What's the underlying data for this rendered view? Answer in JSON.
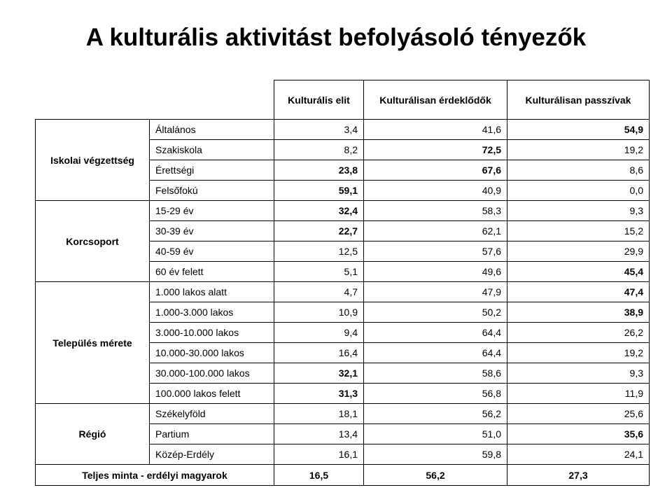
{
  "title": "A kulturális aktivitást befolyásoló tényezők",
  "columns": [
    "Kulturális elit",
    "Kulturálisan érdeklődők",
    "Kulturálisan passzívak"
  ],
  "groups": [
    {
      "name": "Iskolai végzettség",
      "rows": [
        {
          "label": "Általános",
          "values": [
            "3,4",
            "41,6",
            "54,9"
          ],
          "bold": [
            false,
            false,
            true
          ]
        },
        {
          "label": "Szakiskola",
          "values": [
            "8,2",
            "72,5",
            "19,2"
          ],
          "bold": [
            false,
            true,
            false
          ]
        },
        {
          "label": "Érettségi",
          "values": [
            "23,8",
            "67,6",
            "8,6"
          ],
          "bold": [
            true,
            true,
            false
          ]
        },
        {
          "label": "Felsőfokú",
          "values": [
            "59,1",
            "40,9",
            "0,0"
          ],
          "bold": [
            true,
            false,
            false
          ]
        }
      ]
    },
    {
      "name": "Korcsoport",
      "rows": [
        {
          "label": "15-29 év",
          "values": [
            "32,4",
            "58,3",
            "9,3"
          ],
          "bold": [
            true,
            false,
            false
          ]
        },
        {
          "label": "30-39 év",
          "values": [
            "22,7",
            "62,1",
            "15,2"
          ],
          "bold": [
            true,
            false,
            false
          ]
        },
        {
          "label": "40-59 év",
          "values": [
            "12,5",
            "57,6",
            "29,9"
          ],
          "bold": [
            false,
            false,
            false
          ]
        },
        {
          "label": "60 év felett",
          "values": [
            "5,1",
            "49,6",
            "45,4"
          ],
          "bold": [
            false,
            false,
            true
          ]
        }
      ]
    },
    {
      "name": "Település mérete",
      "rows": [
        {
          "label": "1.000 lakos alatt",
          "values": [
            "4,7",
            "47,9",
            "47,4"
          ],
          "bold": [
            false,
            false,
            true
          ]
        },
        {
          "label": "1.000-3.000 lakos",
          "values": [
            "10,9",
            "50,2",
            "38,9"
          ],
          "bold": [
            false,
            false,
            true
          ]
        },
        {
          "label": "3.000-10.000 lakos",
          "values": [
            "9,4",
            "64,4",
            "26,2"
          ],
          "bold": [
            false,
            false,
            false
          ]
        },
        {
          "label": "10.000-30.000 lakos",
          "values": [
            "16,4",
            "64,4",
            "19,2"
          ],
          "bold": [
            false,
            false,
            false
          ]
        },
        {
          "label": "30.000-100.000 lakos",
          "values": [
            "32,1",
            "58,6",
            "9,3"
          ],
          "bold": [
            true,
            false,
            false
          ]
        },
        {
          "label": "100.000 lakos felett",
          "values": [
            "31,3",
            "56,8",
            "11,9"
          ],
          "bold": [
            true,
            false,
            false
          ]
        }
      ]
    },
    {
      "name": "Régió",
      "rows": [
        {
          "label": "Székelyföld",
          "values": [
            "18,1",
            "56,2",
            "25,6"
          ],
          "bold": [
            false,
            false,
            false
          ]
        },
        {
          "label": "Partium",
          "values": [
            "13,4",
            "51,0",
            "35,6"
          ],
          "bold": [
            false,
            false,
            true
          ]
        },
        {
          "label": "Közép-Erdély",
          "values": [
            "16,1",
            "59,8",
            "24,1"
          ],
          "bold": [
            false,
            false,
            false
          ]
        }
      ]
    }
  ],
  "total": {
    "label": "Teljes minta - erdélyi magyarok",
    "values": [
      "16,5",
      "56,2",
      "27,3"
    ]
  }
}
